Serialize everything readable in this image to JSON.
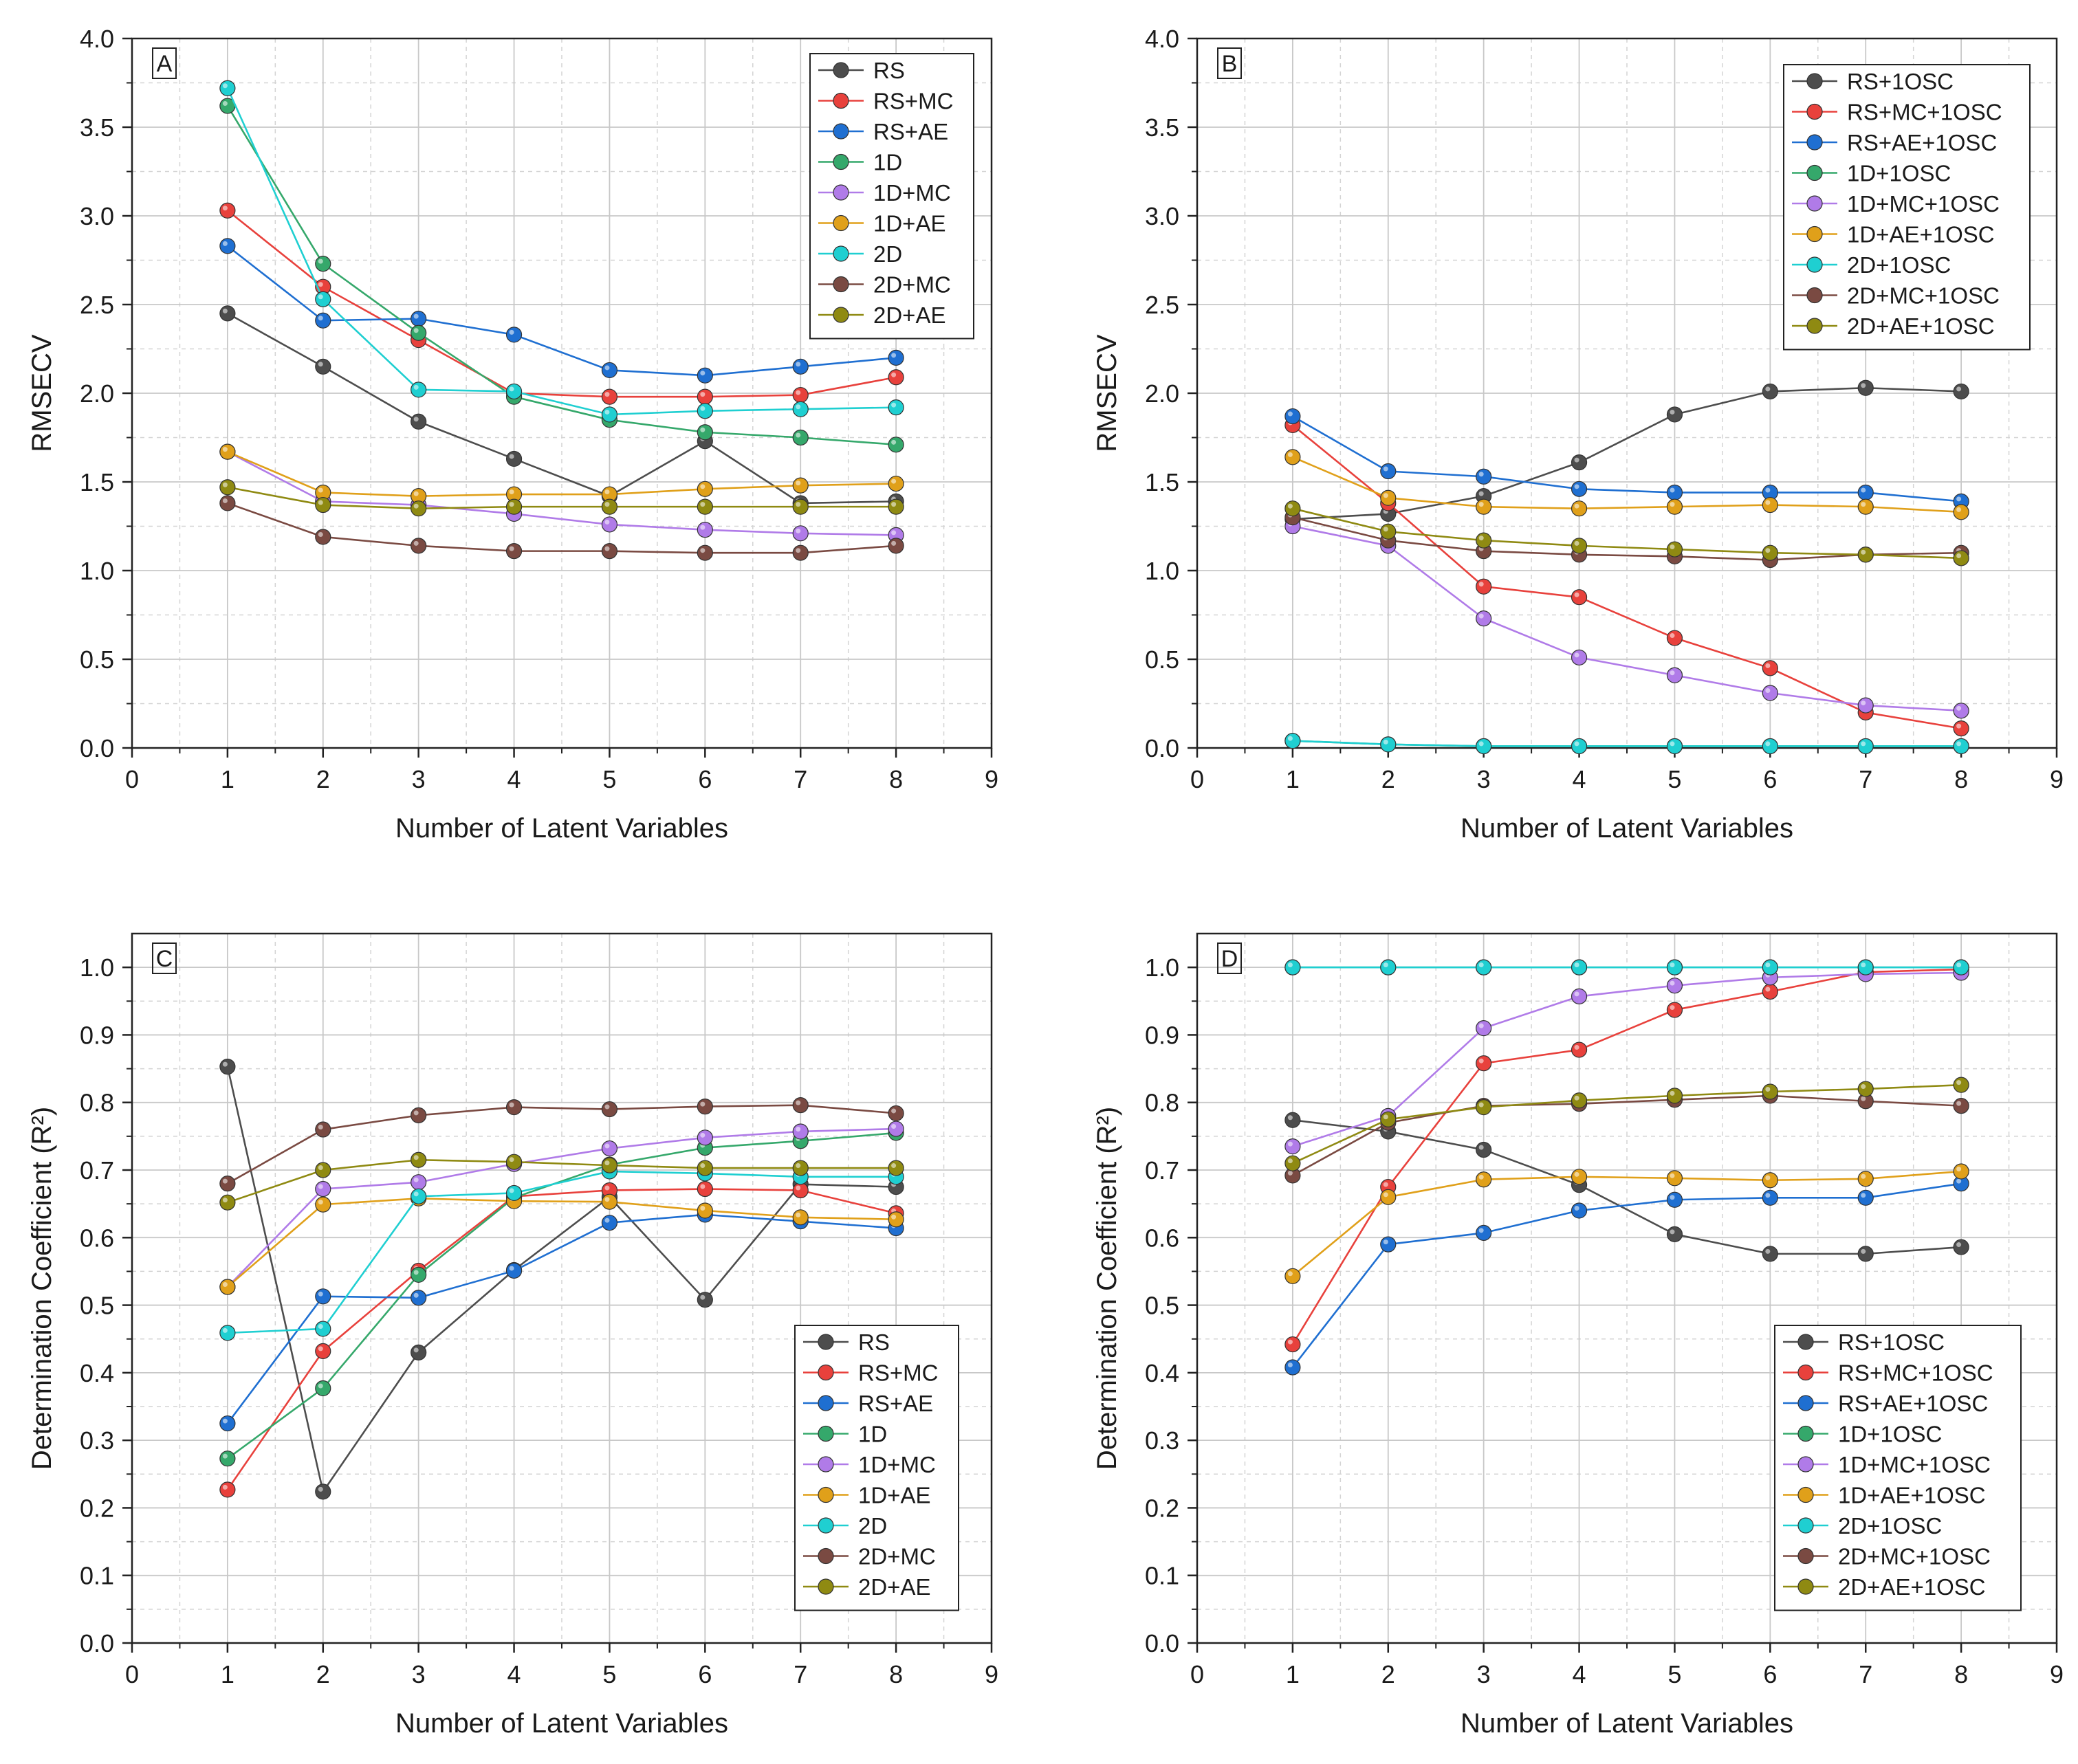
{
  "chart_data": [
    {
      "id": "A",
      "type": "line",
      "panel_label": "A",
      "title": "",
      "xlabel": "Number of Latent Variables",
      "ylabel": "RMSECV",
      "xlim": [
        0,
        9
      ],
      "ylim": [
        0,
        4
      ],
      "xticks": [
        "0",
        "1",
        "2",
        "3",
        "4",
        "5",
        "6",
        "7",
        "8",
        "9"
      ],
      "yticks": [
        "0.0",
        "0.5",
        "1.0",
        "1.5",
        "2.0",
        "2.5",
        "3.0",
        "3.5",
        "4.0"
      ],
      "grid": true,
      "legend_position": "top-right",
      "x": [
        1,
        2,
        3,
        4,
        5,
        6,
        7,
        8
      ],
      "series": [
        {
          "name": "RS",
          "color": "#4d4d4d",
          "values": [
            2.45,
            2.15,
            1.84,
            1.63,
            1.42,
            1.73,
            1.38,
            1.39
          ]
        },
        {
          "name": "RS+MC",
          "color": "#e8413c",
          "values": [
            3.03,
            2.6,
            2.3,
            2.0,
            1.98,
            1.98,
            1.99,
            2.09
          ]
        },
        {
          "name": "RS+AE",
          "color": "#1f6fd1",
          "values": [
            2.83,
            2.41,
            2.42,
            2.33,
            2.13,
            2.1,
            2.15,
            2.2
          ]
        },
        {
          "name": "1D",
          "color": "#35a86b",
          "values": [
            3.62,
            2.73,
            2.34,
            1.98,
            1.85,
            1.78,
            1.75,
            1.71
          ]
        },
        {
          "name": "1D+MC",
          "color": "#b07be8",
          "values": [
            1.67,
            1.39,
            1.37,
            1.32,
            1.26,
            1.23,
            1.21,
            1.2
          ]
        },
        {
          "name": "1D+AE",
          "color": "#e0a01a",
          "values": [
            1.67,
            1.44,
            1.42,
            1.43,
            1.43,
            1.46,
            1.48,
            1.49
          ]
        },
        {
          "name": "2D",
          "color": "#1fcfd1",
          "values": [
            3.72,
            2.53,
            2.02,
            2.01,
            1.88,
            1.9,
            1.91,
            1.92
          ]
        },
        {
          "name": "2D+MC",
          "color": "#7a4a42",
          "values": [
            1.38,
            1.19,
            1.14,
            1.11,
            1.11,
            1.1,
            1.1,
            1.14
          ]
        },
        {
          "name": "2D+AE",
          "color": "#8f8a12",
          "values": [
            1.47,
            1.37,
            1.35,
            1.36,
            1.36,
            1.36,
            1.36,
            1.36
          ]
        }
      ]
    },
    {
      "id": "B",
      "type": "line",
      "panel_label": "B",
      "title": "",
      "xlabel": "Number of Latent Variables",
      "ylabel": "RMSECV",
      "xlim": [
        0,
        9
      ],
      "ylim": [
        0,
        4
      ],
      "xticks": [
        "0",
        "1",
        "2",
        "3",
        "4",
        "5",
        "6",
        "7",
        "8",
        "9"
      ],
      "yticks": [
        "0.0",
        "0.5",
        "1.0",
        "1.5",
        "2.0",
        "2.5",
        "3.0",
        "3.5",
        "4.0"
      ],
      "grid": true,
      "legend_position": "top-right",
      "x": [
        1,
        2,
        3,
        4,
        5,
        6,
        7,
        8
      ],
      "series": [
        {
          "name": "RS+1OSC",
          "color": "#4d4d4d",
          "values": [
            1.29,
            1.32,
            1.42,
            1.61,
            1.88,
            2.01,
            2.03,
            2.01
          ]
        },
        {
          "name": "RS+MC+1OSC",
          "color": "#e8413c",
          "values": [
            1.82,
            1.38,
            0.91,
            0.85,
            0.62,
            0.45,
            0.2,
            0.11
          ]
        },
        {
          "name": "RS+AE+1OSC",
          "color": "#1f6fd1",
          "values": [
            1.87,
            1.56,
            1.53,
            1.46,
            1.44,
            1.44,
            1.44,
            1.39
          ]
        },
        {
          "name": "1D+1OSC",
          "color": "#35a86b",
          "values": [
            0.04,
            0.02,
            0.01,
            0.01,
            0.01,
            0.01,
            0.01,
            0.01
          ]
        },
        {
          "name": "1D+MC+1OSC",
          "color": "#b07be8",
          "values": [
            1.25,
            1.14,
            0.73,
            0.51,
            0.41,
            0.31,
            0.24,
            0.21
          ]
        },
        {
          "name": "1D+AE+1OSC",
          "color": "#e0a01a",
          "values": [
            1.64,
            1.41,
            1.36,
            1.35,
            1.36,
            1.37,
            1.36,
            1.33
          ]
        },
        {
          "name": "2D+1OSC",
          "color": "#1fcfd1",
          "values": [
            0.04,
            0.02,
            0.01,
            0.01,
            0.01,
            0.01,
            0.01,
            0.01
          ]
        },
        {
          "name": "2D+MC+1OSC",
          "color": "#7a4a42",
          "values": [
            1.3,
            1.17,
            1.11,
            1.09,
            1.08,
            1.06,
            1.09,
            1.1
          ]
        },
        {
          "name": "2D+AE+1OSC",
          "color": "#8f8a12",
          "values": [
            1.35,
            1.22,
            1.17,
            1.14,
            1.12,
            1.1,
            1.09,
            1.07
          ]
        }
      ]
    },
    {
      "id": "C",
      "type": "line",
      "panel_label": "C",
      "title": "",
      "xlabel": "Number of Latent Variables",
      "ylabel": "Determination Coefficient (R²)",
      "xlim": [
        0,
        9
      ],
      "ylim": [
        0,
        1.05
      ],
      "xticks": [
        "0",
        "1",
        "2",
        "3",
        "4",
        "5",
        "6",
        "7",
        "8",
        "9"
      ],
      "yticks": [
        "0.0",
        "0.1",
        "0.2",
        "0.3",
        "0.4",
        "0.5",
        "0.6",
        "0.7",
        "0.8",
        "0.9",
        "1.0"
      ],
      "grid": true,
      "legend_position": "bottom-right",
      "x": [
        1,
        2,
        3,
        4,
        5,
        6,
        7,
        8
      ],
      "series": [
        {
          "name": "RS",
          "color": "#4d4d4d",
          "values": [
            0.853,
            0.224,
            0.43,
            0.552,
            0.66,
            0.508,
            0.679,
            0.675
          ]
        },
        {
          "name": "RS+MC",
          "color": "#e8413c",
          "values": [
            0.227,
            0.432,
            0.551,
            0.661,
            0.67,
            0.672,
            0.67,
            0.636
          ]
        },
        {
          "name": "RS+AE",
          "color": "#1f6fd1",
          "values": [
            0.325,
            0.513,
            0.511,
            0.551,
            0.622,
            0.634,
            0.624,
            0.614
          ]
        },
        {
          "name": "1D",
          "color": "#35a86b",
          "values": [
            0.273,
            0.377,
            0.545,
            0.659,
            0.708,
            0.733,
            0.743,
            0.755
          ]
        },
        {
          "name": "1D+MC",
          "color": "#b07be8",
          "values": [
            0.527,
            0.672,
            0.682,
            0.709,
            0.732,
            0.748,
            0.757,
            0.761
          ]
        },
        {
          "name": "1D+AE",
          "color": "#e0a01a",
          "values": [
            0.527,
            0.649,
            0.658,
            0.654,
            0.653,
            0.64,
            0.63,
            0.627
          ]
        },
        {
          "name": "2D",
          "color": "#1fcfd1",
          "values": [
            0.459,
            0.465,
            0.661,
            0.666,
            0.698,
            0.695,
            0.69,
            0.69
          ]
        },
        {
          "name": "2D+MC",
          "color": "#7a4a42",
          "values": [
            0.68,
            0.76,
            0.781,
            0.793,
            0.79,
            0.794,
            0.796,
            0.784
          ]
        },
        {
          "name": "2D+AE",
          "color": "#8f8a12",
          "values": [
            0.652,
            0.7,
            0.715,
            0.712,
            0.707,
            0.703,
            0.703,
            0.703
          ]
        }
      ]
    },
    {
      "id": "D",
      "type": "line",
      "panel_label": "D",
      "title": "",
      "xlabel": "Number of Latent Variables",
      "ylabel": "Determination Coefficient (R²)",
      "xlim": [
        0,
        9
      ],
      "ylim": [
        0,
        1.05
      ],
      "xticks": [
        "0",
        "1",
        "2",
        "3",
        "4",
        "5",
        "6",
        "7",
        "8",
        "9"
      ],
      "yticks": [
        "0.0",
        "0.1",
        "0.2",
        "0.3",
        "0.4",
        "0.5",
        "0.6",
        "0.7",
        "0.8",
        "0.9",
        "1.0"
      ],
      "grid": true,
      "legend_position": "bottom-right",
      "x": [
        1,
        2,
        3,
        4,
        5,
        6,
        7,
        8
      ],
      "series": [
        {
          "name": "RS+1OSC",
          "color": "#4d4d4d",
          "values": [
            0.774,
            0.757,
            0.73,
            0.678,
            0.605,
            0.576,
            0.576,
            0.586
          ]
        },
        {
          "name": "RS+MC+1OSC",
          "color": "#e8413c",
          "values": [
            0.442,
            0.675,
            0.858,
            0.878,
            0.937,
            0.964,
            0.993,
            0.997
          ]
        },
        {
          "name": "RS+AE+1OSC",
          "color": "#1f6fd1",
          "values": [
            0.408,
            0.59,
            0.607,
            0.64,
            0.656,
            0.659,
            0.659,
            0.68
          ]
        },
        {
          "name": "1D+1OSC",
          "color": "#35a86b",
          "values": [
            1.0,
            1.0,
            1.0,
            1.0,
            1.0,
            1.0,
            1.0,
            1.0
          ]
        },
        {
          "name": "1D+MC+1OSC",
          "color": "#b07be8",
          "values": [
            0.735,
            0.78,
            0.91,
            0.957,
            0.973,
            0.985,
            0.99,
            0.992
          ]
        },
        {
          "name": "1D+AE+1OSC",
          "color": "#e0a01a",
          "values": [
            0.543,
            0.66,
            0.686,
            0.69,
            0.688,
            0.685,
            0.687,
            0.698
          ]
        },
        {
          "name": "2D+1OSC",
          "color": "#1fcfd1",
          "values": [
            1.0,
            1.0,
            1.0,
            1.0,
            1.0,
            1.0,
            1.0,
            1.0
          ]
        },
        {
          "name": "2D+MC+1OSC",
          "color": "#7a4a42",
          "values": [
            0.692,
            0.77,
            0.795,
            0.798,
            0.804,
            0.81,
            0.802,
            0.795
          ]
        },
        {
          "name": "2D+AE+1OSC",
          "color": "#8f8a12",
          "values": [
            0.71,
            0.775,
            0.793,
            0.803,
            0.81,
            0.816,
            0.82,
            0.826
          ]
        }
      ]
    }
  ]
}
